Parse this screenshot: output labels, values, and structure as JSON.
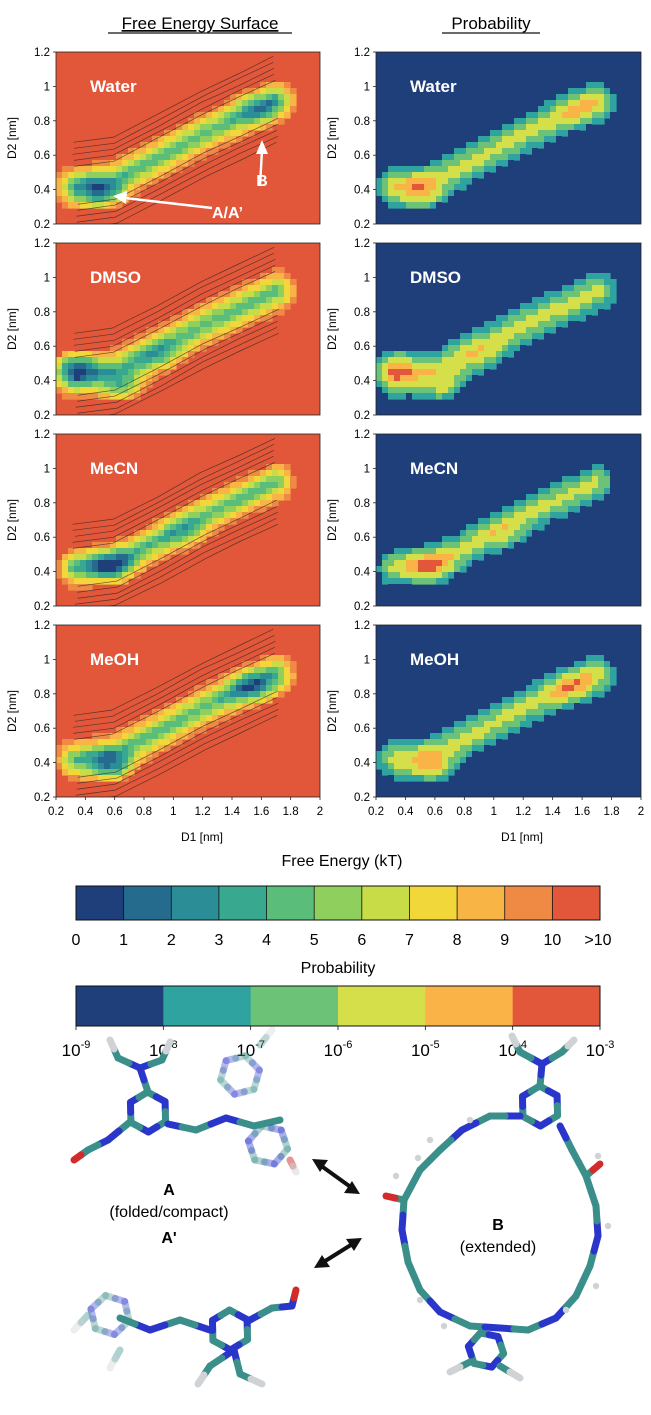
{
  "column_titles": {
    "left": "Free Energy Surface",
    "right": "Probability"
  },
  "panels": [
    {
      "solvent": "Water"
    },
    {
      "solvent": "DMSO"
    },
    {
      "solvent": "MeCN"
    },
    {
      "solvent": "MeOH"
    }
  ],
  "annotations": {
    "state_a": "A/A’",
    "state_b": "B"
  },
  "axes": {
    "xlabel": "D1 [nm]",
    "ylabel": "D2 [nm]",
    "x_ticks": [
      "0.2",
      "0.4",
      "0.6",
      "0.8",
      "1",
      "1.2",
      "1.4",
      "1.6",
      "1.8",
      "2"
    ],
    "y_ticks": [
      "0.2",
      "0.4",
      "0.6",
      "0.8",
      "1",
      "1.2"
    ],
    "xlim": [
      0.2,
      2.0
    ],
    "ylim": [
      0.2,
      1.2
    ]
  },
  "colorbars": {
    "free_energy": {
      "title": "Free Energy (kT)",
      "labels": [
        "0",
        "1",
        "2",
        "3",
        "4",
        "5",
        "6",
        "7",
        "8",
        "9",
        "10",
        ">10"
      ],
      "colors": [
        "#1f3f7a",
        "#246b8e",
        "#2b8d96",
        "#38a98e",
        "#5abe7a",
        "#8fcf5e",
        "#c8dc47",
        "#f2d73a",
        "#f8b445",
        "#ef8a45",
        "#e2573a"
      ]
    },
    "probability": {
      "title": "Probability",
      "labels_base": "10",
      "labels_exp": [
        "-9",
        "-8",
        "-7",
        "-6",
        "-5",
        "-4",
        "-3"
      ],
      "colors": [
        "#1f3f7a",
        "#2fa3a0",
        "#6cc377",
        "#d5df49",
        "#fab347",
        "#e2573a"
      ]
    }
  },
  "structures": {
    "a_label": "A",
    "a_caption": "(folded/compact)",
    "a_prime_label": "A'",
    "b_label": "B",
    "b_caption": "(extended)"
  },
  "chart_data": [
    {
      "type": "heatmap",
      "title": "Free Energy Surface",
      "panel": "Water",
      "xlabel": "D1 [nm]",
      "ylabel": "D2 [nm]",
      "xlim": [
        0.2,
        2.0
      ],
      "ylim": [
        0.2,
        1.2
      ],
      "minima": [
        {
          "label": "A/A’",
          "x": 0.55,
          "y": 0.38,
          "value_kT": 0
        },
        {
          "label": "B",
          "x": 1.6,
          "y": 0.85,
          "value_kT": 3
        }
      ]
    },
    {
      "type": "heatmap",
      "title": "Free Energy Surface",
      "panel": "DMSO",
      "xlim": [
        0.2,
        2.0
      ],
      "ylim": [
        0.2,
        1.2
      ],
      "minima": [
        {
          "x": 0.35,
          "y": 0.48,
          "value_kT": 0
        },
        {
          "x": 0.65,
          "y": 0.35,
          "value_kT": 1
        }
      ]
    },
    {
      "type": "heatmap",
      "title": "Free Energy Surface",
      "panel": "MeCN",
      "xlim": [
        0.2,
        2.0
      ],
      "ylim": [
        0.2,
        1.2
      ],
      "minima": [
        {
          "x": 0.55,
          "y": 0.42,
          "value_kT": 0
        }
      ]
    },
    {
      "type": "heatmap",
      "title": "Free Energy Surface",
      "panel": "MeOH",
      "xlim": [
        0.2,
        2.0
      ],
      "ylim": [
        0.2,
        1.2
      ],
      "minima": [
        {
          "x": 0.55,
          "y": 0.36,
          "value_kT": 0
        },
        {
          "x": 1.55,
          "y": 0.85,
          "value_kT": 2
        }
      ]
    },
    {
      "type": "heatmap",
      "title": "Probability",
      "panel": "Water",
      "xlim": [
        0.2,
        2.0
      ],
      "ylim": [
        0.2,
        1.2
      ],
      "peaks": [
        {
          "x": 0.35,
          "y": 0.38,
          "prob": "1e-4"
        },
        {
          "x": 0.62,
          "y": 0.35,
          "prob": "1e-4"
        }
      ]
    },
    {
      "type": "heatmap",
      "title": "Probability",
      "panel": "DMSO",
      "xlim": [
        0.2,
        2.0
      ],
      "ylim": [
        0.2,
        1.2
      ],
      "peaks": [
        {
          "x": 0.34,
          "y": 0.48,
          "prob": "1e-4"
        },
        {
          "x": 0.68,
          "y": 0.35,
          "prob": "1e-4"
        }
      ]
    },
    {
      "type": "heatmap",
      "title": "Probability",
      "panel": "MeCN",
      "xlim": [
        0.2,
        2.0
      ],
      "ylim": [
        0.2,
        1.2
      ],
      "peaks": [
        {
          "x": 0.57,
          "y": 0.43,
          "prob": "1e-4"
        }
      ]
    },
    {
      "type": "heatmap",
      "title": "Probability",
      "panel": "MeOH",
      "xlim": [
        0.2,
        2.0
      ],
      "ylim": [
        0.2,
        1.2
      ],
      "peaks": [
        {
          "x": 0.58,
          "y": 0.37,
          "prob": "1e-4"
        },
        {
          "x": 1.55,
          "y": 0.84,
          "prob": "1e-4"
        }
      ]
    }
  ]
}
